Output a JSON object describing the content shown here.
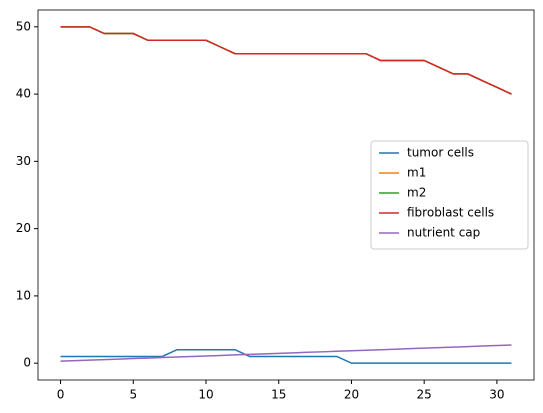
{
  "chart_data": {
    "type": "line",
    "x": [
      0,
      1,
      2,
      3,
      4,
      5,
      6,
      7,
      8,
      9,
      10,
      11,
      12,
      13,
      14,
      15,
      16,
      17,
      18,
      19,
      20,
      21,
      22,
      23,
      24,
      25,
      26,
      27,
      28,
      29,
      30,
      31
    ],
    "series": [
      {
        "name": "tumor cells",
        "color": "#1f77b4",
        "values": [
          1,
          1,
          1,
          1,
          1,
          1,
          1,
          1,
          2,
          2,
          2,
          2,
          2,
          1,
          1,
          1,
          1,
          1,
          1,
          1,
          0,
          0,
          0,
          0,
          0,
          0,
          0,
          0,
          0,
          0,
          0,
          0
        ]
      },
      {
        "name": "m1",
        "color": "#ff7f0e",
        "values": [
          50,
          50,
          50,
          49,
          49,
          49,
          48,
          48,
          48,
          48,
          48,
          47,
          46,
          46,
          46,
          46,
          46,
          46,
          46,
          46,
          46,
          46,
          45,
          45,
          45,
          45,
          44,
          43,
          43,
          42,
          41,
          40
        ]
      },
      {
        "name": "m2",
        "color": "#2ca02c",
        "values": [
          50,
          50,
          50,
          49,
          49,
          49,
          48,
          48,
          48,
          48,
          48,
          47,
          46,
          46,
          46,
          46,
          46,
          46,
          46,
          46,
          46,
          46,
          45,
          45,
          45,
          45,
          44,
          43,
          43,
          42,
          41,
          40
        ]
      },
      {
        "name": "fibroblast cells",
        "color": "#d62728",
        "values": [
          50,
          50,
          50,
          49,
          49,
          49,
          48,
          48,
          48,
          48,
          48,
          47,
          46,
          46,
          46,
          46,
          46,
          46,
          46,
          46,
          46,
          46,
          45,
          45,
          45,
          45,
          44,
          43,
          43,
          42,
          41,
          40
        ]
      },
      {
        "name": "nutrient cap",
        "color": "#9467bd",
        "values": [
          0.3,
          0.38,
          0.45,
          0.53,
          0.61,
          0.69,
          0.76,
          0.84,
          0.92,
          1.0,
          1.07,
          1.15,
          1.23,
          1.3,
          1.38,
          1.46,
          1.54,
          1.62,
          1.69,
          1.77,
          1.85,
          1.92,
          2.0,
          2.08,
          2.16,
          2.24,
          2.31,
          2.39,
          2.47,
          2.55,
          2.62,
          2.7
        ]
      }
    ],
    "xlim": [
      -1.55,
      32.55
    ],
    "xticks": [
      0,
      5,
      10,
      15,
      20,
      25,
      30
    ],
    "ylim": [
      -2.5,
      52.5
    ],
    "yticks": [
      0,
      10,
      20,
      30,
      40,
      50
    ],
    "legend": "center right",
    "grid": false
  }
}
